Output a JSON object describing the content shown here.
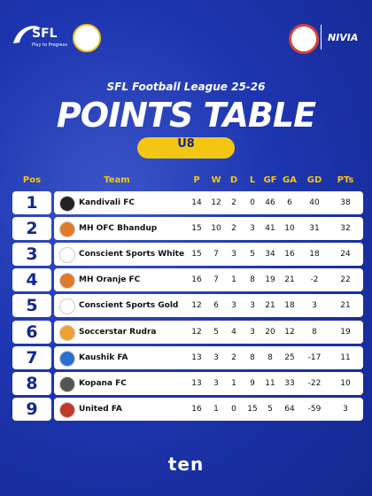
{
  "header": {
    "brand": "SFL",
    "tagline": "Play to Progress",
    "partner": "NIVIA",
    "subtitle": "SFL Football League 25-26",
    "title": "POINTS TABLE",
    "category": "U8"
  },
  "table": {
    "columns": [
      "Pos",
      "Team",
      "P",
      "W",
      "D",
      "L",
      "GF",
      "GA",
      "GD",
      "PTs"
    ],
    "rows": [
      [
        1,
        "Kandivali FC",
        14,
        12,
        2,
        0,
        46,
        6,
        40,
        38
      ],
      [
        2,
        "MH OFC Bhandup",
        15,
        10,
        2,
        3,
        41,
        10,
        31,
        32
      ],
      [
        3,
        "Conscient Sports White",
        15,
        7,
        3,
        5,
        34,
        16,
        18,
        24
      ],
      [
        4,
        "MH Oranje FC",
        16,
        7,
        1,
        8,
        19,
        21,
        -2,
        22
      ],
      [
        5,
        "Conscient Sports Gold",
        12,
        6,
        3,
        3,
        21,
        18,
        3,
        21
      ],
      [
        6,
        "Soccerstar Rudra",
        12,
        5,
        4,
        3,
        20,
        12,
        8,
        19
      ],
      [
        7,
        "Kaushik FA",
        13,
        3,
        2,
        8,
        8,
        25,
        -17,
        11
      ],
      [
        8,
        "Kopana FC",
        13,
        3,
        1,
        9,
        11,
        33,
        -22,
        10
      ],
      [
        9,
        "United FA",
        16,
        1,
        0,
        15,
        5,
        64,
        -59,
        3
      ]
    ]
  },
  "footer": {
    "logo": "ten"
  }
}
